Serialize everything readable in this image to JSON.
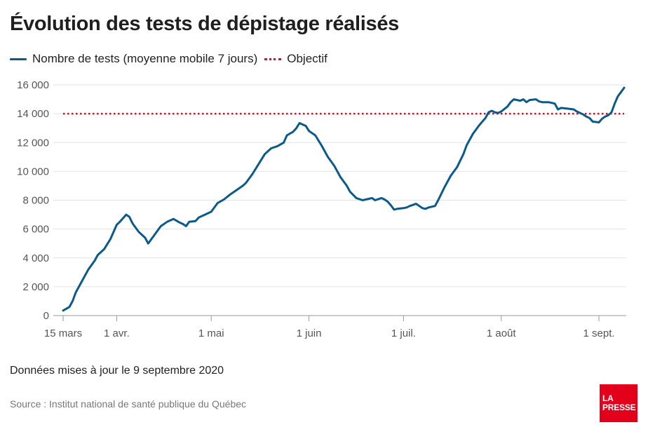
{
  "title": "Évolution des tests de dépistage réalisés",
  "legend": {
    "series_label": "Nombre de tests (moyenne mobile 7 jours)",
    "target_label": "Objectif"
  },
  "footer": {
    "note": "Données mises à jour le 9 septembre 2020",
    "source": "Source : Institut national de santé publique du Québec"
  },
  "logo": {
    "line1": "LA",
    "line2": "PRESSE"
  },
  "colors": {
    "series": "#0a5a8c",
    "target": "#d0112b",
    "grid": "#e2e2e2",
    "logo": "#e3001b"
  },
  "chart_data": {
    "type": "line",
    "title": "Évolution des tests de dépistage réalisés",
    "xlabel": "",
    "ylabel": "",
    "ylim": [
      0,
      16000
    ],
    "yticks": [
      0,
      2000,
      4000,
      6000,
      8000,
      10000,
      12000,
      14000,
      16000
    ],
    "ytick_labels": [
      "0",
      "2 000",
      "4 000",
      "6 000",
      "8 000",
      "10 000",
      "12 000",
      "14 000",
      "16 000"
    ],
    "xlim_days": [
      0,
      178
    ],
    "xticks": [
      {
        "day": 0,
        "label": "15 mars"
      },
      {
        "day": 17,
        "label": "1 avr."
      },
      {
        "day": 47,
        "label": "1 mai"
      },
      {
        "day": 78,
        "label": "1 juin"
      },
      {
        "day": 108,
        "label": "1 juil."
      },
      {
        "day": 139,
        "label": "1 août"
      },
      {
        "day": 170,
        "label": "1 sept."
      }
    ],
    "grid": "horizontal",
    "legend_position": "top-left",
    "target": {
      "name": "Objectif",
      "value": 14000
    },
    "series": [
      {
        "name": "Nombre de tests (moyenne mobile 7 jours)",
        "points": [
          [
            0,
            350
          ],
          [
            2,
            600
          ],
          [
            3,
            1000
          ],
          [
            4,
            1600
          ],
          [
            6,
            2400
          ],
          [
            8,
            3200
          ],
          [
            10,
            3800
          ],
          [
            11,
            4200
          ],
          [
            13,
            4600
          ],
          [
            15,
            5300
          ],
          [
            17,
            6300
          ],
          [
            18,
            6500
          ],
          [
            20,
            7000
          ],
          [
            21,
            6850
          ],
          [
            22,
            6400
          ],
          [
            24,
            5800
          ],
          [
            26,
            5400
          ],
          [
            27,
            5000
          ],
          [
            29,
            5600
          ],
          [
            31,
            6200
          ],
          [
            33,
            6500
          ],
          [
            35,
            6700
          ],
          [
            37,
            6450
          ],
          [
            38,
            6350
          ],
          [
            39,
            6200
          ],
          [
            40,
            6500
          ],
          [
            42,
            6550
          ],
          [
            43,
            6800
          ],
          [
            45,
            7000
          ],
          [
            47,
            7200
          ],
          [
            49,
            7800
          ],
          [
            51,
            8050
          ],
          [
            53,
            8400
          ],
          [
            55,
            8700
          ],
          [
            57,
            9000
          ],
          [
            58,
            9200
          ],
          [
            60,
            9800
          ],
          [
            62,
            10500
          ],
          [
            64,
            11200
          ],
          [
            66,
            11600
          ],
          [
            68,
            11750
          ],
          [
            70,
            12000
          ],
          [
            71,
            12500
          ],
          [
            73,
            12750
          ],
          [
            74,
            13000
          ],
          [
            75,
            13350
          ],
          [
            77,
            13150
          ],
          [
            78,
            12800
          ],
          [
            80,
            12500
          ],
          [
            82,
            11800
          ],
          [
            84,
            11000
          ],
          [
            86,
            10400
          ],
          [
            88,
            9600
          ],
          [
            90,
            9000
          ],
          [
            91,
            8600
          ],
          [
            93,
            8150
          ],
          [
            95,
            8000
          ],
          [
            96,
            8050
          ],
          [
            98,
            8150
          ],
          [
            99,
            8000
          ],
          [
            101,
            8150
          ],
          [
            102,
            8050
          ],
          [
            103,
            7900
          ],
          [
            104,
            7650
          ],
          [
            105,
            7350
          ],
          [
            106,
            7400
          ],
          [
            108,
            7450
          ],
          [
            109,
            7500
          ],
          [
            110,
            7600
          ],
          [
            112,
            7750
          ],
          [
            113,
            7600
          ],
          [
            114,
            7450
          ],
          [
            115,
            7400
          ],
          [
            116,
            7500
          ],
          [
            118,
            7600
          ],
          [
            119,
            8000
          ],
          [
            121,
            8900
          ],
          [
            123,
            9700
          ],
          [
            125,
            10300
          ],
          [
            127,
            11200
          ],
          [
            128,
            11800
          ],
          [
            130,
            12600
          ],
          [
            132,
            13200
          ],
          [
            134,
            13700
          ],
          [
            135,
            14100
          ],
          [
            136,
            14200
          ],
          [
            137,
            14100
          ],
          [
            138,
            14050
          ],
          [
            139,
            14150
          ],
          [
            141,
            14500
          ],
          [
            142,
            14800
          ],
          [
            143,
            15000
          ],
          [
            145,
            14900
          ],
          [
            146,
            15000
          ],
          [
            147,
            14800
          ],
          [
            148,
            14950
          ],
          [
            150,
            15000
          ],
          [
            151,
            14850
          ],
          [
            152,
            14800
          ],
          [
            154,
            14800
          ],
          [
            156,
            14700
          ],
          [
            157,
            14300
          ],
          [
            158,
            14400
          ],
          [
            160,
            14350
          ],
          [
            162,
            14300
          ],
          [
            163,
            14150
          ],
          [
            165,
            13950
          ],
          [
            166,
            13800
          ],
          [
            167,
            13700
          ],
          [
            168,
            13450
          ],
          [
            170,
            13400
          ],
          [
            171,
            13650
          ],
          [
            172,
            13800
          ],
          [
            173,
            13900
          ],
          [
            174,
            14100
          ],
          [
            175,
            14700
          ],
          [
            176,
            15200
          ],
          [
            177,
            15500
          ],
          [
            178,
            15800
          ]
        ]
      }
    ]
  }
}
